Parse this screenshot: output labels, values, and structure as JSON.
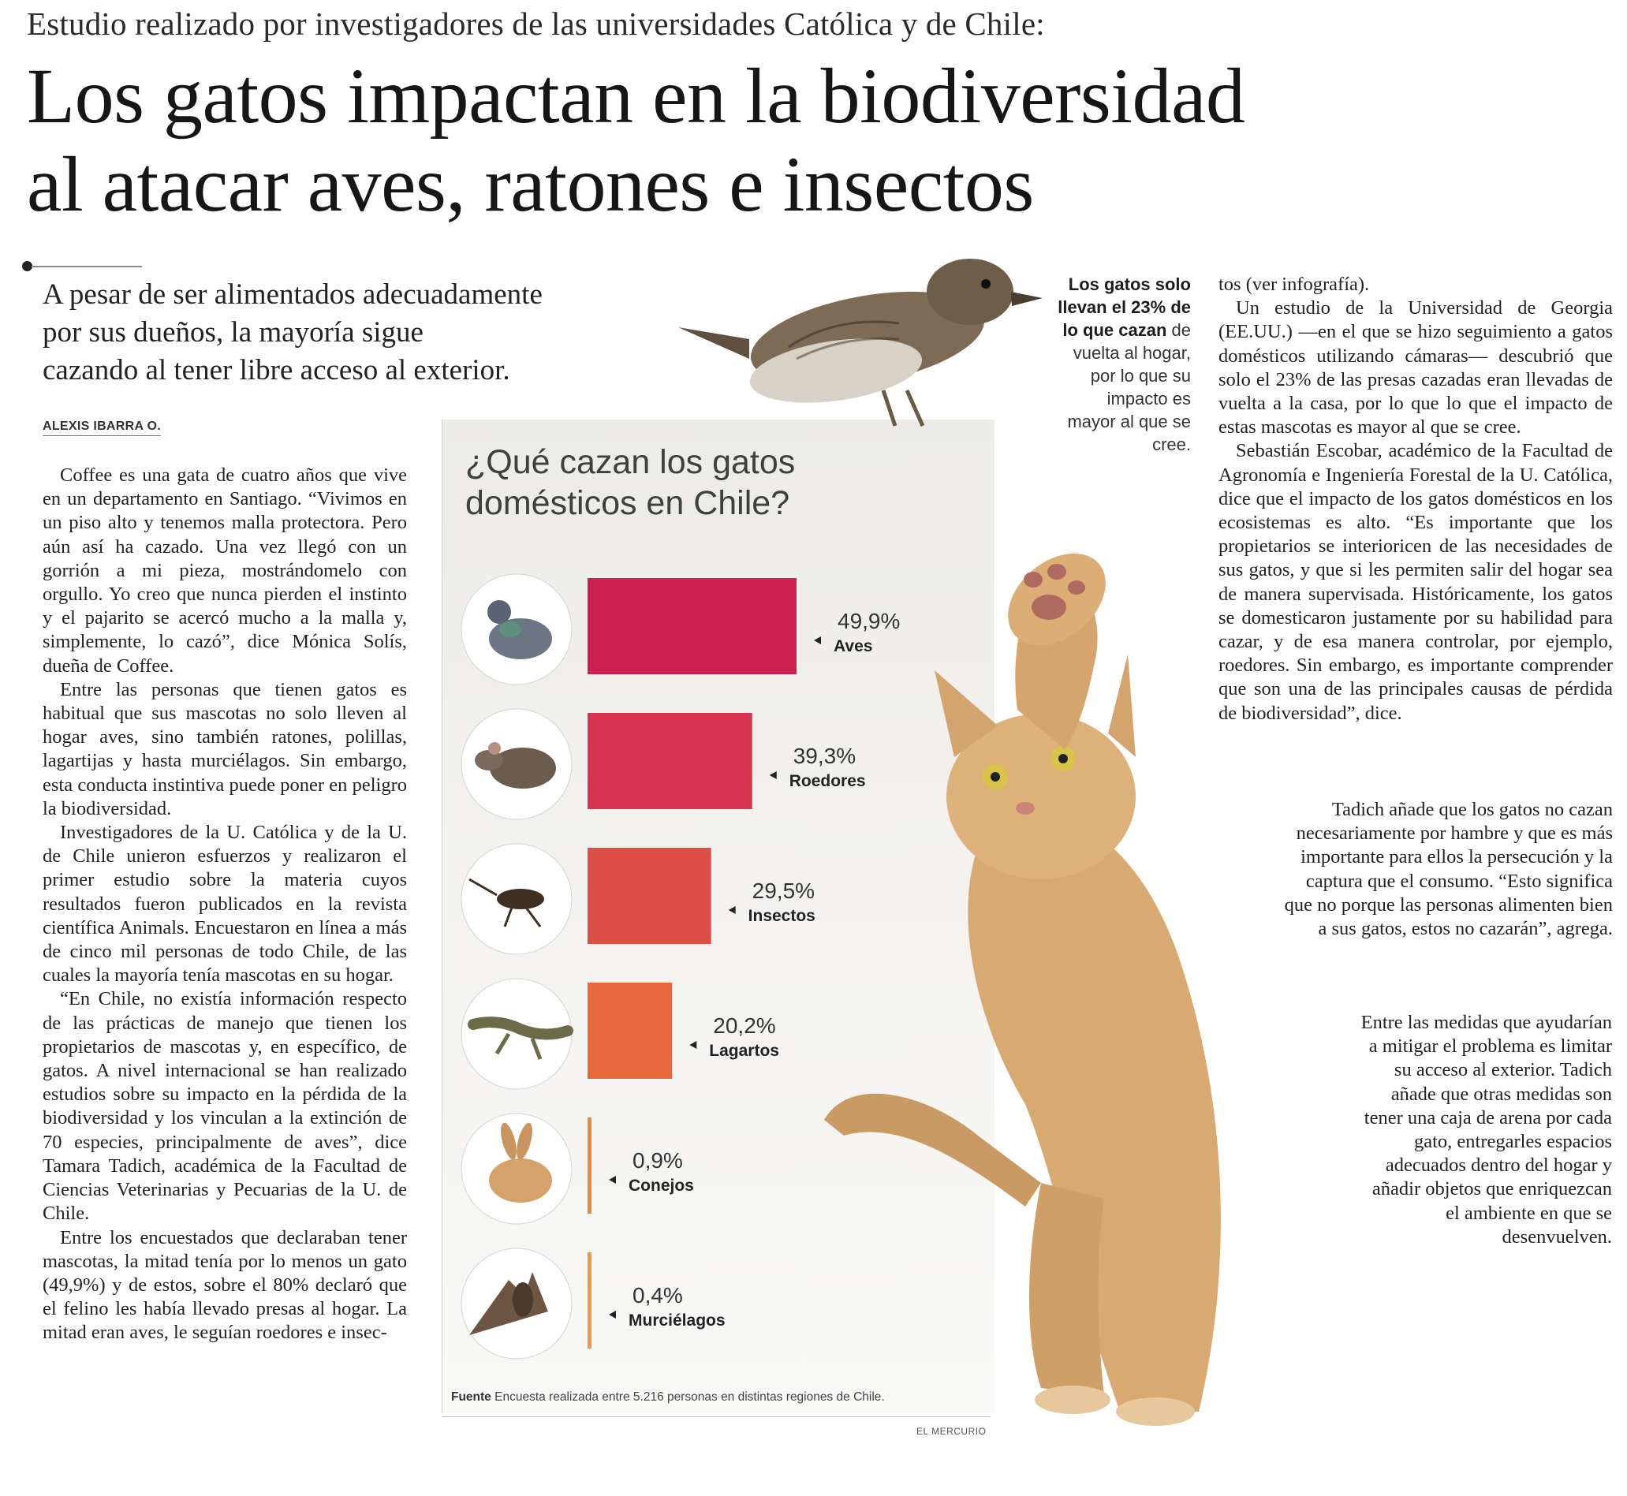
{
  "kicker": "Estudio realizado por investigadores de las universidades Católica y de Chile:",
  "headline": {
    "line1": "Los gatos impactan en la biodiversidad",
    "line2": "al atacar aves, ratones e insectos"
  },
  "deck": {
    "line1": "A pesar de ser alimentados adecuadamente",
    "line2": "por sus dueños, la mayoría sigue",
    "line3": "cazando al tener libre acceso al exterior."
  },
  "byline": "ALEXIS IBARRA O.",
  "column1": [
    "Coffee es una gata de cuatro años que vive en un departamento en Santiago. “Vivimos en un piso alto y tenemos malla protectora. Pero aún así ha cazado. Una vez llegó con un gorrión a mi pieza, mostrándomelo con orgullo. Yo creo que nunca pierden el instinto y el pajarito se acercó mucho a la malla y, simplemente, lo cazó”, dice Mónica Solís, dueña de Coffee.",
    "Entre las personas que tienen gatos es habitual que sus mascotas no solo lleven al hogar aves, sino también ratones, polillas, lagartijas y hasta murciélagos. Sin embargo, esta conducta instintiva puede poner en peligro la biodiversidad.",
    "Investigadores de la U. Católica y de la U. de Chile unieron esfuerzos y realizaron el primer estudio sobre la materia cuyos resultados fueron publicados en la revista científica Animals. Encuestaron en línea a más de cinco mil personas de todo Chile, de las cuales la mayoría tenía mascotas en su hogar.",
    "“En Chile, no existía información respecto de las prácticas de manejo que tienen los propietarios de mascotas y, en específico, de gatos. A nivel internacional se han realizado estudios sobre su impacto en la pérdida de la biodiversidad y los vinculan a la extinción de 70 especies, principalmente de aves”, dice Tamara Tadich, académica de la Facultad de Ciencias Veterinarias y Pecuarias de la U. de Chile.",
    "Entre los encuestados que declaraban tener mascotas, la mitad tenía por lo menos un gato (49,9%) y de estos, sobre el 80% declaró que el felino les había llevado presas al hogar. La mitad eran aves, le seguían roedores e insec-"
  ],
  "pullquote": {
    "bold": "Los gatos solo llevan el 23% de lo que cazan",
    "rest": "de vuelta al hogar, por lo que su impacto es mayor al que se cree."
  },
  "column3": [
    "tos (ver infografía).",
    "Un estudio de la Universidad de Georgia (EE.UU.) —en el que se hizo seguimiento a gatos domésticos utilizando cámaras— descubrió que solo el 23% de las presas cazadas eran llevadas de vuelta a la casa, por lo que lo que el impacto de estas mascotas es mayor al que se cree.",
    "Sebastián Escobar, académico de la Facultad de Agronomía e Ingeniería Forestal de la U. Católica, dice que el impacto de los gatos domésticos en los ecosistemas es alto. “Es importante que los propietarios se interioricen de las necesidades de sus gatos, y que si les permiten salir del hogar sea de manera supervisada. Históricamente, los gatos se domesticaron justamente por su habilidad para cazar, y de esa manera controlar, por ejemplo, roedores. Sin embargo, es importante comprender que son una de las principales causas de pérdida de biodiversidad”, dice."
  ],
  "column3_mid": "Tadich añade que los gatos no cazan necesariamente por hambre y que es más importante para ellos la persecución y la captura que el consumo. “Esto significa que no porque las personas alimenten bien a sus gatos, estos no cazarán”, agrega.",
  "column3_tail": "Entre las medidas que ayudarían a mitigar el problema es limitar su acceso al exterior. Tadich añade que otras medidas son tener una caja de arena por cada gato, entregarles espacios adecuados dentro del hogar y añadir objetos que enriquezcan el ambiente en que se desenvuelven.",
  "chart_title": {
    "line1": "¿Qué cazan los gatos",
    "line2": "domésticos en Chile?"
  },
  "chart_data": {
    "type": "bar",
    "orientation": "horizontal",
    "categories": [
      "Aves",
      "Roedores",
      "Insectos",
      "Lagartos",
      "Conejos",
      "Murciélagos"
    ],
    "values": [
      49.9,
      39.3,
      29.5,
      20.2,
      0.9,
      0.4
    ],
    "value_labels": [
      "49,9%",
      "39,3%",
      "29,5%",
      "20,2%",
      "0,9%",
      "0,4%"
    ],
    "icons": [
      "pigeon-icon",
      "rat-icon",
      "cricket-icon",
      "lizard-icon",
      "rabbit-icon",
      "bat-icon"
    ],
    "colors": [
      "#cc1f52",
      "#d6344f",
      "#de4e45",
      "#e6683b",
      "#e88a3a",
      "#ec9b3f"
    ],
    "title": "¿Qué cazan los gatos domésticos en Chile?"
  },
  "source": {
    "label": "Fuente",
    "text": "Encuesta realizada entre 5.216 personas en distintas regiones de Chile."
  },
  "credit": "EL MERCURIO"
}
